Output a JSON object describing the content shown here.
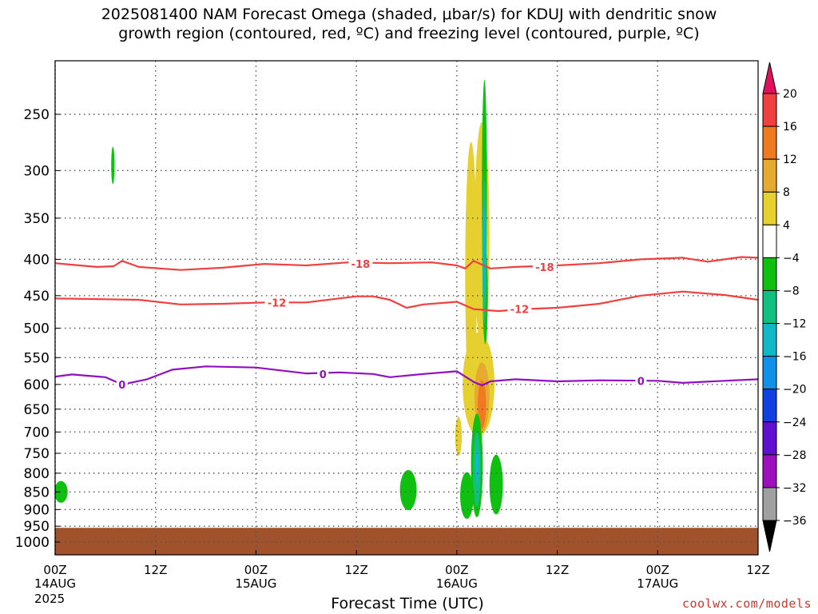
{
  "title": {
    "line1": "2025081400 NAM Forecast Omega (shaded, μbar/s) for KDUJ with dendritic snow",
    "line2": "growth region (contoured, red, ºC) and freezing level (contoured, purple, ºC)"
  },
  "footer": {
    "xlabel": "Forecast Time (UTC)",
    "credit": "coolwx.com/models",
    "year": "2025"
  },
  "chart_data": {
    "type": "contour",
    "x_hours_range": [
      0,
      84
    ],
    "x_ticks": [
      {
        "hour": 0,
        "label": "00Z",
        "date": "14AUG"
      },
      {
        "hour": 12,
        "label": "12Z",
        "date": ""
      },
      {
        "hour": 24,
        "label": "00Z",
        "date": "15AUG"
      },
      {
        "hour": 36,
        "label": "12Z",
        "date": ""
      },
      {
        "hour": 48,
        "label": "00Z",
        "date": "16AUG"
      },
      {
        "hour": 60,
        "label": "12Z",
        "date": ""
      },
      {
        "hour": 72,
        "label": "00Z",
        "date": "17AUG"
      },
      {
        "hour": 84,
        "label": "12Z",
        "date": ""
      }
    ],
    "y_axis": {
      "quantity": "pressure (hPa)",
      "ticks": [
        250,
        300,
        350,
        400,
        450,
        500,
        550,
        600,
        650,
        700,
        750,
        800,
        850,
        900,
        950,
        1000
      ],
      "grid": true
    },
    "colorbar": {
      "labels": [
        "20",
        "16",
        "12",
        "8",
        "4",
        "−4",
        "−8",
        "−12",
        "−16",
        "−20",
        "−24",
        "−28",
        "−32",
        "−36"
      ],
      "colors": [
        "#e0105e",
        "#f04040",
        "#f07a20",
        "#e6aa30",
        "#e6d030",
        "#ffffff",
        "#10c010",
        "#10c080",
        "#10b8c8",
        "#1090e8",
        "#1040e0",
        "#6010d0",
        "#9c10c0",
        "#a0a0a0",
        "#000000"
      ]
    },
    "contours": [
      {
        "level": "-18",
        "color": "#f04040",
        "points": [
          [
            0,
            405
          ],
          [
            2,
            407
          ],
          [
            5,
            410
          ],
          [
            7,
            409
          ],
          [
            8,
            402
          ],
          [
            10,
            410
          ],
          [
            15,
            414
          ],
          [
            20,
            411
          ],
          [
            25,
            406
          ],
          [
            30,
            408
          ],
          [
            35,
            404
          ],
          [
            40,
            405
          ],
          [
            45,
            404
          ],
          [
            48,
            408
          ],
          [
            49,
            412
          ],
          [
            50,
            402
          ],
          [
            52,
            412
          ],
          [
            55,
            410
          ],
          [
            60,
            408
          ],
          [
            65,
            405
          ],
          [
            70,
            400
          ],
          [
            75,
            398
          ],
          [
            78,
            403
          ],
          [
            82,
            397
          ],
          [
            84,
            398
          ]
        ]
      },
      {
        "level": "-12",
        "color": "#f04040",
        "points": [
          [
            0,
            454
          ],
          [
            5,
            455
          ],
          [
            10,
            456
          ],
          [
            15,
            463
          ],
          [
            20,
            462
          ],
          [
            25,
            460
          ],
          [
            30,
            460
          ],
          [
            36,
            451
          ],
          [
            38,
            451
          ],
          [
            40,
            456
          ],
          [
            42,
            468
          ],
          [
            44,
            463
          ],
          [
            48,
            459
          ],
          [
            50,
            470
          ],
          [
            53,
            473
          ],
          [
            56,
            470
          ],
          [
            60,
            468
          ],
          [
            65,
            462
          ],
          [
            70,
            450
          ],
          [
            75,
            444
          ],
          [
            80,
            449
          ],
          [
            84,
            456
          ]
        ]
      },
      {
        "level": "0",
        "color": "#9010c0",
        "points": [
          [
            0,
            585
          ],
          [
            2,
            581
          ],
          [
            6,
            586
          ],
          [
            8,
            600
          ],
          [
            11,
            590
          ],
          [
            14,
            572
          ],
          [
            18,
            566
          ],
          [
            24,
            568
          ],
          [
            30,
            579
          ],
          [
            34,
            577
          ],
          [
            38,
            580
          ],
          [
            40,
            586
          ],
          [
            44,
            580
          ],
          [
            48,
            575
          ],
          [
            50,
            595
          ],
          [
            51,
            602
          ],
          [
            52,
            594
          ],
          [
            55,
            590
          ],
          [
            60,
            594
          ],
          [
            65,
            592
          ],
          [
            72,
            593
          ],
          [
            75,
            597
          ],
          [
            80,
            593
          ],
          [
            84,
            590
          ]
        ]
      }
    ],
    "contour_labels": [
      {
        "text": "-18",
        "hour": 36.5,
        "p": 406
      },
      {
        "text": "-18",
        "hour": 58.5,
        "p": 410
      },
      {
        "text": "-12",
        "hour": 26.5,
        "p": 460
      },
      {
        "text": "-12",
        "hour": 55.5,
        "p": 470
      },
      {
        "text": "0",
        "hour": 8,
        "p": 600
      },
      {
        "text": "0",
        "hour": 32,
        "p": 580
      },
      {
        "text": "0",
        "hour": 70,
        "p": 593
      }
    ],
    "terrain": {
      "color": "#a0522d",
      "top_p": 955
    },
    "omega_features": [
      {
        "level": "-4",
        "color": "#10c010",
        "hour": 6.9,
        "p": 295,
        "hw": 0.2,
        "hp": 18
      },
      {
        "level": "-4",
        "color": "#10c010",
        "hour": 0.7,
        "p": 850,
        "hw": 0.8,
        "hp": 30
      },
      {
        "level": "-4",
        "color": "#10c010",
        "hour": 42.2,
        "p": 845,
        "hw": 1.0,
        "hp": 55
      },
      {
        "level": "-4",
        "color": "#10c010",
        "hour": 49.2,
        "p": 860,
        "hw": 0.8,
        "hp": 65
      },
      {
        "level": "-4",
        "color": "#10c010",
        "hour": 52.7,
        "p": 830,
        "hw": 0.8,
        "hp": 80
      },
      {
        "level": "4",
        "color": "#e6d030",
        "hour": 49.7,
        "p": 420,
        "hw": 0.7,
        "hp": 170
      },
      {
        "level": "4",
        "color": "#e6d030",
        "hour": 51.0,
        "p": 370,
        "hw": 0.9,
        "hp": 130
      },
      {
        "level": "4",
        "color": "#e6d030",
        "hour": 50.6,
        "p": 600,
        "hw": 1.9,
        "hp": 100
      },
      {
        "level": "4",
        "color": "#e6d030",
        "hour": 48.2,
        "p": 710,
        "hw": 0.4,
        "hp": 45
      },
      {
        "level": "-4",
        "color": "#10c010",
        "hour": 51.3,
        "p": 320,
        "hw": 0.3,
        "hp": 110
      },
      {
        "level": "-4",
        "color": "#10c010",
        "hour": 51.4,
        "p": 450,
        "hw": 0.3,
        "hp": 70
      },
      {
        "level": "-8",
        "color": "#10c080",
        "hour": 51.3,
        "p": 390,
        "hw": 0.25,
        "hp": 90
      },
      {
        "level": "-12",
        "color": "#10b8c8",
        "hour": 51.3,
        "p": 390,
        "hw": 0.12,
        "hp": 55
      },
      {
        "level": "8",
        "color": "#e6aa30",
        "hour": 51.0,
        "p": 625,
        "hw": 0.9,
        "hp": 70
      },
      {
        "level": "12",
        "color": "#f07a20",
        "hour": 51.0,
        "p": 640,
        "hw": 0.5,
        "hp": 50
      },
      {
        "level": "-4",
        "color": "#10c010",
        "hour": 50.4,
        "p": 780,
        "hw": 0.7,
        "hp": 130
      },
      {
        "level": "-8",
        "color": "#10c080",
        "hour": 50.4,
        "p": 790,
        "hw": 0.45,
        "hp": 95
      },
      {
        "level": "-12",
        "color": "#10b8c8",
        "hour": 50.4,
        "p": 780,
        "hw": 0.2,
        "hp": 45
      }
    ]
  }
}
